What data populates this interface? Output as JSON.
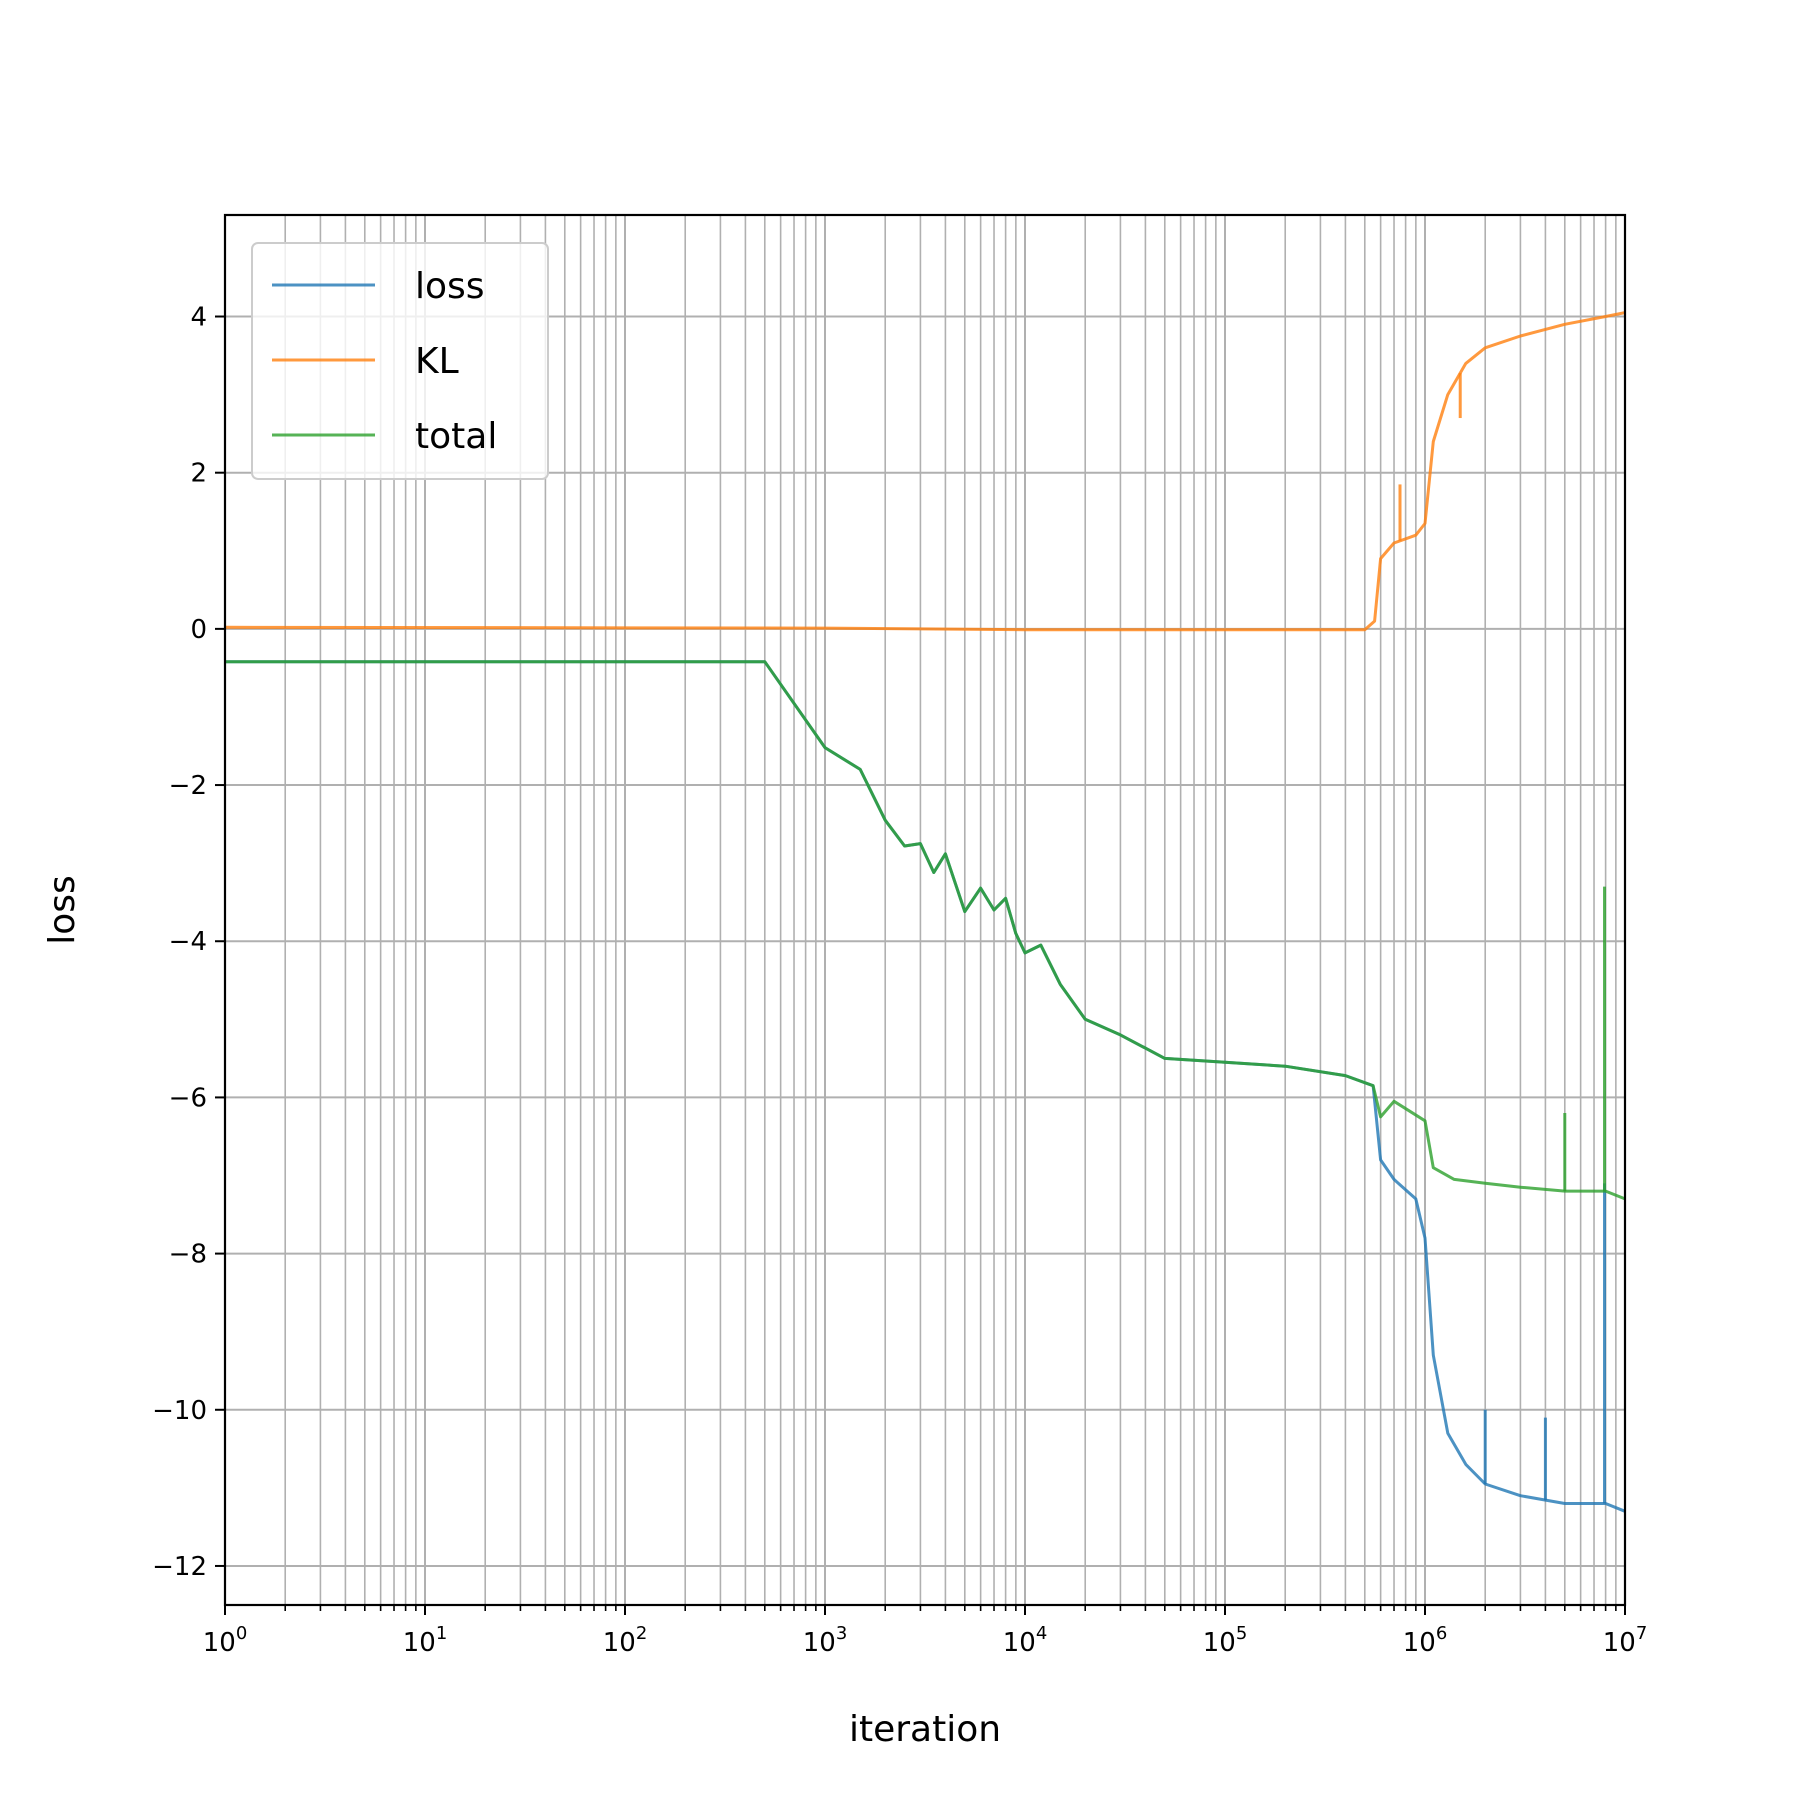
{
  "chart_data": {
    "type": "line",
    "title": "",
    "xlabel": "iteration",
    "ylabel": "loss",
    "xscale": "log",
    "xlim": [
      1,
      10000000
    ],
    "ylim": [
      -12.5,
      5.3
    ],
    "grid": true,
    "grid_minor": true,
    "legend_position": "upper-left",
    "x_ticks": [
      {
        "value": 1,
        "base": "10",
        "exp": "0"
      },
      {
        "value": 10,
        "base": "10",
        "exp": "1"
      },
      {
        "value": 100,
        "base": "10",
        "exp": "2"
      },
      {
        "value": 1000,
        "base": "10",
        "exp": "3"
      },
      {
        "value": 10000,
        "base": "10",
        "exp": "4"
      },
      {
        "value": 100000,
        "base": "10",
        "exp": "5"
      },
      {
        "value": 1000000,
        "base": "10",
        "exp": "6"
      },
      {
        "value": 10000000,
        "base": "10",
        "exp": "7"
      }
    ],
    "y_ticks": [
      {
        "value": 4,
        "label": "4"
      },
      {
        "value": 2,
        "label": "2"
      },
      {
        "value": 0,
        "label": "0"
      },
      {
        "value": -2,
        "label": "−2"
      },
      {
        "value": -4,
        "label": "−4"
      },
      {
        "value": -6,
        "label": "−6"
      },
      {
        "value": -8,
        "label": "−8"
      },
      {
        "value": -10,
        "label": "−10"
      },
      {
        "value": -12,
        "label": "−12"
      }
    ],
    "series": [
      {
        "name": "loss",
        "color": "#1f77b4",
        "points": [
          [
            1,
            -0.42
          ],
          [
            500,
            -0.42
          ],
          [
            1000,
            -1.52
          ],
          [
            1500,
            -1.8
          ],
          [
            2000,
            -2.45
          ],
          [
            2500,
            -2.78
          ],
          [
            3000,
            -2.75
          ],
          [
            3500,
            -3.12
          ],
          [
            4000,
            -2.88
          ],
          [
            5000,
            -3.62
          ],
          [
            6000,
            -3.32
          ],
          [
            7000,
            -3.6
          ],
          [
            8000,
            -3.45
          ],
          [
            9000,
            -3.9
          ],
          [
            10000,
            -4.15
          ],
          [
            12000,
            -4.05
          ],
          [
            15000,
            -4.55
          ],
          [
            20000,
            -5.0
          ],
          [
            30000,
            -5.2
          ],
          [
            50000,
            -5.5
          ],
          [
            100000,
            -5.55
          ],
          [
            200000,
            -5.6
          ],
          [
            400000,
            -5.72
          ],
          [
            550000,
            -5.85
          ],
          [
            600000,
            -6.8
          ],
          [
            700000,
            -7.05
          ],
          [
            900000,
            -7.3
          ],
          [
            1000000,
            -7.8
          ],
          [
            1100000,
            -9.3
          ],
          [
            1300000,
            -10.3
          ],
          [
            1600000,
            -10.7
          ],
          [
            2000000,
            -10.95
          ],
          [
            3000000,
            -11.1
          ],
          [
            5000000,
            -11.2
          ],
          [
            8000000,
            -11.2
          ],
          [
            10000000,
            -11.3
          ]
        ],
        "spikes": [
          [
            2000000,
            -10.0
          ],
          [
            4000000,
            -10.1
          ],
          [
            7900000,
            -7.1
          ]
        ]
      },
      {
        "name": "KL",
        "color": "#ff7f0e",
        "points": [
          [
            1,
            0.02
          ],
          [
            1000,
            0.01
          ],
          [
            10000,
            -0.01
          ],
          [
            100000,
            -0.01
          ],
          [
            500000,
            -0.01
          ],
          [
            560000,
            0.1
          ],
          [
            600000,
            0.9
          ],
          [
            700000,
            1.1
          ],
          [
            900000,
            1.2
          ],
          [
            1000000,
            1.35
          ],
          [
            1100000,
            2.4
          ],
          [
            1300000,
            3.0
          ],
          [
            1600000,
            3.4
          ],
          [
            2000000,
            3.6
          ],
          [
            3000000,
            3.75
          ],
          [
            5000000,
            3.9
          ],
          [
            8000000,
            4.0
          ],
          [
            10000000,
            4.05
          ]
        ],
        "spikes": [
          [
            750000,
            1.85
          ],
          [
            1500000,
            2.7
          ]
        ]
      },
      {
        "name": "total",
        "color": "#2ca02c",
        "points": [
          [
            1,
            -0.42
          ],
          [
            500,
            -0.42
          ],
          [
            1000,
            -1.52
          ],
          [
            1500,
            -1.8
          ],
          [
            2000,
            -2.45
          ],
          [
            2500,
            -2.78
          ],
          [
            3000,
            -2.75
          ],
          [
            3500,
            -3.12
          ],
          [
            4000,
            -2.88
          ],
          [
            5000,
            -3.62
          ],
          [
            6000,
            -3.32
          ],
          [
            7000,
            -3.6
          ],
          [
            8000,
            -3.45
          ],
          [
            9000,
            -3.9
          ],
          [
            10000,
            -4.15
          ],
          [
            12000,
            -4.05
          ],
          [
            15000,
            -4.55
          ],
          [
            20000,
            -5.0
          ],
          [
            30000,
            -5.2
          ],
          [
            50000,
            -5.5
          ],
          [
            100000,
            -5.55
          ],
          [
            200000,
            -5.6
          ],
          [
            400000,
            -5.72
          ],
          [
            550000,
            -5.85
          ],
          [
            600000,
            -6.25
          ],
          [
            700000,
            -6.05
          ],
          [
            1000000,
            -6.3
          ],
          [
            1100000,
            -6.9
          ],
          [
            1400000,
            -7.05
          ],
          [
            2000000,
            -7.1
          ],
          [
            3000000,
            -7.15
          ],
          [
            5000000,
            -7.2
          ],
          [
            8000000,
            -7.2
          ],
          [
            10000000,
            -7.3
          ]
        ],
        "spikes": [
          [
            5000000,
            -6.2
          ],
          [
            7900000,
            -3.3
          ]
        ]
      }
    ]
  }
}
